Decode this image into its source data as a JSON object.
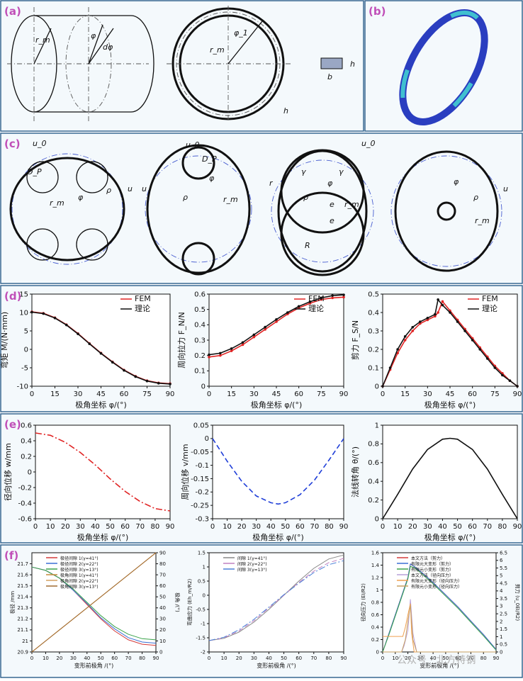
{
  "panel_labels": {
    "a": "(a)",
    "b": "(b)",
    "c": "(c)",
    "d": "(d)",
    "e": "(e)",
    "f": "(f)"
  },
  "watermark": "公众号 · 北方特钢",
  "schematic_labels": {
    "a": [
      "r_m",
      "φ",
      "dφ",
      "φ_1",
      "r_m",
      "h",
      "b",
      "h"
    ],
    "c": [
      "u_0",
      "D_P",
      "φ",
      "ρ",
      "u",
      "r_m",
      "u",
      "D_P",
      "ρ",
      "φ",
      "r_m",
      "u_0",
      "r",
      "γ",
      "γ",
      "φ",
      "ρ",
      "e",
      "r_m",
      "e",
      "R",
      "u_0",
      "φ",
      "ρ",
      "u",
      "r_m"
    ]
  },
  "chart_data": [
    {
      "id": "d1",
      "type": "line",
      "xlabel": "极角坐标 φ/(°)",
      "ylabel": "弯矩 M/(N·mm)",
      "xlim": [
        0,
        90
      ],
      "ylim": [
        -10,
        15
      ],
      "xticks": [
        0,
        15,
        30,
        45,
        60,
        75,
        90
      ],
      "yticks": [
        -10,
        -5,
        0,
        5,
        10,
        15
      ],
      "legend": "top-right",
      "series": [
        {
          "name": "FEM",
          "color": "#e02424",
          "marker": "dot",
          "x": [
            0,
            7.5,
            15,
            22.5,
            30,
            37.5,
            45,
            52.5,
            60,
            67.5,
            75,
            82.5,
            90
          ],
          "y": [
            10.2,
            9.8,
            8.6,
            6.7,
            4.3,
            1.6,
            -1.0,
            -3.4,
            -5.6,
            -7.3,
            -8.5,
            -9.1,
            -9.3
          ]
        },
        {
          "name": "理论",
          "color": "#111111",
          "marker": "dot",
          "x": [
            0,
            7.5,
            15,
            22.5,
            30,
            37.5,
            45,
            52.5,
            60,
            67.5,
            75,
            82.5,
            90
          ],
          "y": [
            10.1,
            9.7,
            8.5,
            6.6,
            4.2,
            1.5,
            -1.1,
            -3.5,
            -5.7,
            -7.4,
            -8.6,
            -9.2,
            -9.4
          ]
        }
      ]
    },
    {
      "id": "d2",
      "type": "line",
      "xlabel": "极角坐标 φ/(°)",
      "ylabel": "周向拉力 F_N/N",
      "xlim": [
        0,
        90
      ],
      "ylim": [
        0,
        0.6
      ],
      "xticks": [
        0,
        15,
        30,
        45,
        60,
        75,
        90
      ],
      "yticks": [
        0,
        0.1,
        0.2,
        0.3,
        0.4,
        0.5,
        0.6
      ],
      "legend": "top-right",
      "series": [
        {
          "name": "FEM",
          "color": "#e02424",
          "marker": "dot",
          "x": [
            0,
            7.5,
            15,
            22.5,
            30,
            37.5,
            45,
            52.5,
            60,
            67.5,
            75,
            82.5,
            90
          ],
          "y": [
            0.19,
            0.2,
            0.23,
            0.27,
            0.32,
            0.37,
            0.42,
            0.47,
            0.51,
            0.54,
            0.565,
            0.575,
            0.58
          ]
        },
        {
          "name": "理论",
          "color": "#111111",
          "marker": "dot",
          "x": [
            0,
            7.5,
            15,
            22.5,
            30,
            37.5,
            45,
            52.5,
            60,
            67.5,
            75,
            82.5,
            90
          ],
          "y": [
            0.205,
            0.215,
            0.245,
            0.285,
            0.335,
            0.385,
            0.435,
            0.48,
            0.52,
            0.55,
            0.575,
            0.59,
            0.595
          ]
        }
      ]
    },
    {
      "id": "d3",
      "type": "line",
      "xlabel": "极角坐标 φ/(°)",
      "ylabel": "剪力 F_S/N",
      "xlim": [
        0,
        90
      ],
      "ylim": [
        0,
        0.5
      ],
      "xticks": [
        0,
        15,
        30,
        45,
        60,
        75,
        90
      ],
      "yticks": [
        0,
        0.1,
        0.2,
        0.3,
        0.4,
        0.5
      ],
      "legend": "top-right",
      "series": [
        {
          "name": "FEM",
          "color": "#e02424",
          "marker": "dot",
          "x": [
            0,
            5,
            10,
            15,
            20,
            25,
            30,
            35,
            37,
            40,
            45,
            50,
            55,
            60,
            65,
            70,
            75,
            80,
            85,
            90
          ],
          "y": [
            0,
            0.09,
            0.18,
            0.25,
            0.3,
            0.34,
            0.36,
            0.38,
            0.4,
            0.46,
            0.41,
            0.36,
            0.31,
            0.26,
            0.21,
            0.16,
            0.11,
            0.07,
            0.03,
            0
          ]
        },
        {
          "name": "理论",
          "color": "#111111",
          "marker": "dot",
          "x": [
            0,
            5,
            10,
            15,
            20,
            25,
            30,
            35,
            37,
            40,
            45,
            50,
            55,
            60,
            65,
            70,
            75,
            80,
            85,
            90
          ],
          "y": [
            0,
            0.1,
            0.2,
            0.27,
            0.32,
            0.35,
            0.37,
            0.39,
            0.47,
            0.44,
            0.4,
            0.35,
            0.3,
            0.25,
            0.2,
            0.15,
            0.1,
            0.06,
            0.03,
            0
          ]
        }
      ]
    },
    {
      "id": "e1",
      "type": "line",
      "xlabel": "极角坐标 φ/(°)",
      "ylabel": "径向位移 w/mm",
      "xlim": [
        0,
        90
      ],
      "ylim": [
        -0.6,
        0.6
      ],
      "xticks": [
        0,
        10,
        20,
        30,
        40,
        50,
        60,
        70,
        80,
        90
      ],
      "yticks": [
        -0.6,
        -0.4,
        -0.2,
        0,
        0.2,
        0.4,
        0.6
      ],
      "series": [
        {
          "color": "#e02424",
          "dash": "dashdot",
          "x": [
            0,
            10,
            20,
            30,
            40,
            50,
            60,
            70,
            80,
            90
          ],
          "y": [
            0.5,
            0.47,
            0.38,
            0.25,
            0.09,
            -0.09,
            -0.25,
            -0.38,
            -0.47,
            -0.5
          ]
        }
      ]
    },
    {
      "id": "e2",
      "type": "line",
      "xlabel": "极角坐标 φ/(°)",
      "ylabel": "周向位移 v/mm",
      "xlim": [
        0,
        90
      ],
      "ylim": [
        -0.3,
        0.05
      ],
      "xticks": [
        0,
        10,
        20,
        30,
        40,
        50,
        60,
        70,
        80,
        90
      ],
      "yticks": [
        -0.3,
        -0.25,
        -0.2,
        -0.15,
        -0.1,
        -0.05,
        0.0,
        0.05
      ],
      "series": [
        {
          "color": "#1f3ed8",
          "dash": "dash",
          "x": [
            0,
            10,
            20,
            30,
            40,
            45,
            50,
            60,
            70,
            80,
            90
          ],
          "y": [
            0,
            -0.085,
            -0.16,
            -0.215,
            -0.24,
            -0.245,
            -0.24,
            -0.21,
            -0.155,
            -0.08,
            0
          ]
        }
      ]
    },
    {
      "id": "e3",
      "type": "line",
      "xlabel": "极角坐标 φ/(°)",
      "ylabel": "法线转角 θ/(°)",
      "xlim": [
        0,
        90
      ],
      "ylim": [
        0,
        1.0
      ],
      "xticks": [
        0,
        10,
        20,
        30,
        40,
        50,
        60,
        70,
        80,
        90
      ],
      "yticks": [
        0,
        0.2,
        0.4,
        0.6,
        0.8,
        1.0
      ],
      "series": [
        {
          "color": "#111111",
          "dash": "solid",
          "x": [
            0,
            10,
            20,
            30,
            40,
            45,
            50,
            60,
            70,
            80,
            90
          ],
          "y": [
            0,
            0.26,
            0.53,
            0.74,
            0.85,
            0.86,
            0.85,
            0.74,
            0.53,
            0.26,
            0
          ]
        }
      ]
    },
    {
      "id": "f1",
      "type": "line",
      "xlabel": "变形前极角 /(°)",
      "ylabel": "极径 /mm",
      "ylabel_right": "极角 /(°)",
      "xlim": [
        0,
        90
      ],
      "ylim": [
        20.9,
        21.8
      ],
      "ylim_right": [
        0,
        90
      ],
      "xticks": [
        0,
        10,
        20,
        30,
        40,
        50,
        60,
        70,
        80,
        90
      ],
      "yticks": [
        20.9,
        21.0,
        21.1,
        21.2,
        21.3,
        21.4,
        21.5,
        21.6,
        21.7
      ],
      "yticks_right": [
        0,
        10,
        20,
        30,
        40,
        50,
        60,
        70,
        80,
        90
      ],
      "series": [
        {
          "name": "极径间隙 1(γ=41°)",
          "color": "#d43a3a",
          "x": [
            0,
            10,
            20,
            30,
            40,
            50,
            60,
            70,
            80,
            90
          ],
          "y": [
            21.67,
            21.64,
            21.57,
            21.46,
            21.33,
            21.2,
            21.09,
            21.01,
            20.97,
            20.96
          ]
        },
        {
          "name": "极径间隙 2(γ=22°)",
          "color": "#3a6fd4",
          "x": [
            0,
            10,
            20,
            30,
            40,
            50,
            60,
            70,
            80,
            90
          ],
          "y": [
            21.67,
            21.64,
            21.57,
            21.46,
            21.34,
            21.21,
            21.11,
            21.03,
            20.99,
            20.98
          ]
        },
        {
          "name": "极径间隙 3(γ=13°)",
          "color": "#3aa34a",
          "x": [
            0,
            10,
            20,
            30,
            40,
            50,
            60,
            70,
            80,
            90
          ],
          "y": [
            21.67,
            21.64,
            21.57,
            21.47,
            21.35,
            21.23,
            21.13,
            21.06,
            21.02,
            21.01
          ]
        },
        {
          "name": "极角间隙 1(γ=41°)",
          "color": "#c48a3a",
          "axis": "right",
          "x": [
            0,
            90
          ],
          "y": [
            0,
            90
          ]
        },
        {
          "name": "极角间隙 2(γ=22°)",
          "color": "#d4a060",
          "axis": "right",
          "x": [
            0,
            90
          ],
          "y": [
            0,
            90
          ]
        },
        {
          "name": "极角间隙 3(γ=13°)",
          "color": "#a06a30",
          "axis": "right",
          "x": [
            0,
            90
          ],
          "y": [
            0,
            90
          ]
        }
      ]
    },
    {
      "id": "f2",
      "type": "line",
      "xlabel": "变形前极角 /(°)",
      "ylabel": "弯曲应力 (Eh_m/R2)",
      "xlim": [
        0,
        90
      ],
      "ylim": [
        -2.0,
        1.5
      ],
      "xticks": [
        0,
        10,
        20,
        30,
        40,
        50,
        60,
        70,
        80,
        90
      ],
      "yticks": [
        -2.0,
        -1.5,
        -1.0,
        -0.5,
        0.0,
        0.5,
        1.0,
        1.5
      ],
      "series": [
        {
          "name": "间隙 1(γ=41°)",
          "color": "#888888",
          "dash": "solid",
          "x": [
            0,
            10,
            20,
            30,
            40,
            50,
            60,
            70,
            80,
            90
          ],
          "y": [
            -1.6,
            -1.52,
            -1.3,
            -0.95,
            -0.5,
            0,
            0.5,
            0.95,
            1.28,
            1.42
          ]
        },
        {
          "name": "间隙 2(γ=22°)",
          "color": "#c080c0",
          "dash": "dash",
          "x": [
            0,
            10,
            20,
            30,
            40,
            50,
            60,
            70,
            80,
            90
          ],
          "y": [
            -1.6,
            -1.5,
            -1.26,
            -0.9,
            -0.45,
            0,
            0.45,
            0.85,
            1.15,
            1.3
          ]
        },
        {
          "name": "间隙 3(γ=13°)",
          "color": "#4a80d8",
          "dash": "dashdot",
          "x": [
            0,
            10,
            20,
            30,
            40,
            50,
            60,
            70,
            80,
            90
          ],
          "y": [
            -1.6,
            -1.48,
            -1.22,
            -0.85,
            -0.42,
            0.02,
            0.42,
            0.8,
            1.08,
            1.22
          ]
        }
      ]
    },
    {
      "id": "f3",
      "type": "line",
      "xlabel": "变形前极角 /(°)",
      "ylabel": "径向压力 (EI/R2)",
      "ylabel_right": "剪力 (u_0EI/R2)",
      "xlim": [
        0,
        90
      ],
      "ylim": [
        0,
        1.6
      ],
      "ylim_right": [
        0,
        6.5
      ],
      "xticks": [
        0,
        10,
        20,
        30,
        40,
        50,
        60,
        70,
        80,
        90
      ],
      "yticks": [
        0,
        0.2,
        0.4,
        0.6,
        0.8,
        1.0,
        1.2,
        1.4,
        1.6
      ],
      "yticks_right": [
        0,
        0.5,
        1.0,
        1.5,
        2.0,
        2.5,
        3.0,
        3.5,
        4.0,
        4.5,
        5.0,
        5.5,
        6.0,
        6.5
      ],
      "series": [
        {
          "name": "本文方法（剪力）",
          "color": "#d43a3a",
          "x": [
            0,
            5,
            10,
            15,
            20,
            22,
            25,
            30,
            40,
            50,
            60,
            70,
            80,
            90
          ],
          "y": [
            0,
            0.3,
            0.6,
            0.9,
            1.2,
            1.42,
            1.38,
            1.3,
            1.12,
            0.92,
            0.72,
            0.5,
            0.28,
            0.04
          ]
        },
        {
          "name": "有限元大变形（剪力）",
          "color": "#3a6fd4",
          "x": [
            0,
            5,
            10,
            15,
            20,
            22,
            25,
            30,
            40,
            50,
            60,
            70,
            80,
            90
          ],
          "y": [
            0,
            0.3,
            0.6,
            0.9,
            1.2,
            1.42,
            1.38,
            1.3,
            1.12,
            0.92,
            0.72,
            0.5,
            0.28,
            0.04
          ]
        },
        {
          "name": "有限元小变形（剪力）",
          "color": "#3aa34a",
          "x": [
            0,
            5,
            10,
            15,
            20,
            22,
            25,
            30,
            40,
            50,
            60,
            70,
            80,
            90
          ],
          "y": [
            0,
            0.28,
            0.58,
            0.88,
            1.18,
            1.38,
            1.36,
            1.28,
            1.1,
            0.9,
            0.7,
            0.48,
            0.26,
            0.03
          ]
        },
        {
          "name": "本文方法（径向压力）",
          "color": "#b8a0d8",
          "x": [
            0,
            15,
            17,
            20,
            22,
            24,
            27,
            90
          ],
          "y": [
            0,
            0,
            0.1,
            0.35,
            0.85,
            0.3,
            0,
            0
          ]
        },
        {
          "name": "有限元大变形（径向压力）",
          "color": "#f0a050",
          "x": [
            0,
            16,
            18,
            20,
            22,
            23,
            25,
            90
          ],
          "y": [
            0.25,
            0.25,
            0.4,
            0.6,
            0.78,
            0.3,
            0,
            0
          ]
        },
        {
          "name": "有限元小变形（径向压力）",
          "color": "#c8a060",
          "x": [
            0,
            15,
            18,
            20,
            22,
            24,
            27,
            90
          ],
          "y": [
            0,
            0,
            0.2,
            0.5,
            0.75,
            0.2,
            0,
            0
          ]
        }
      ]
    }
  ]
}
